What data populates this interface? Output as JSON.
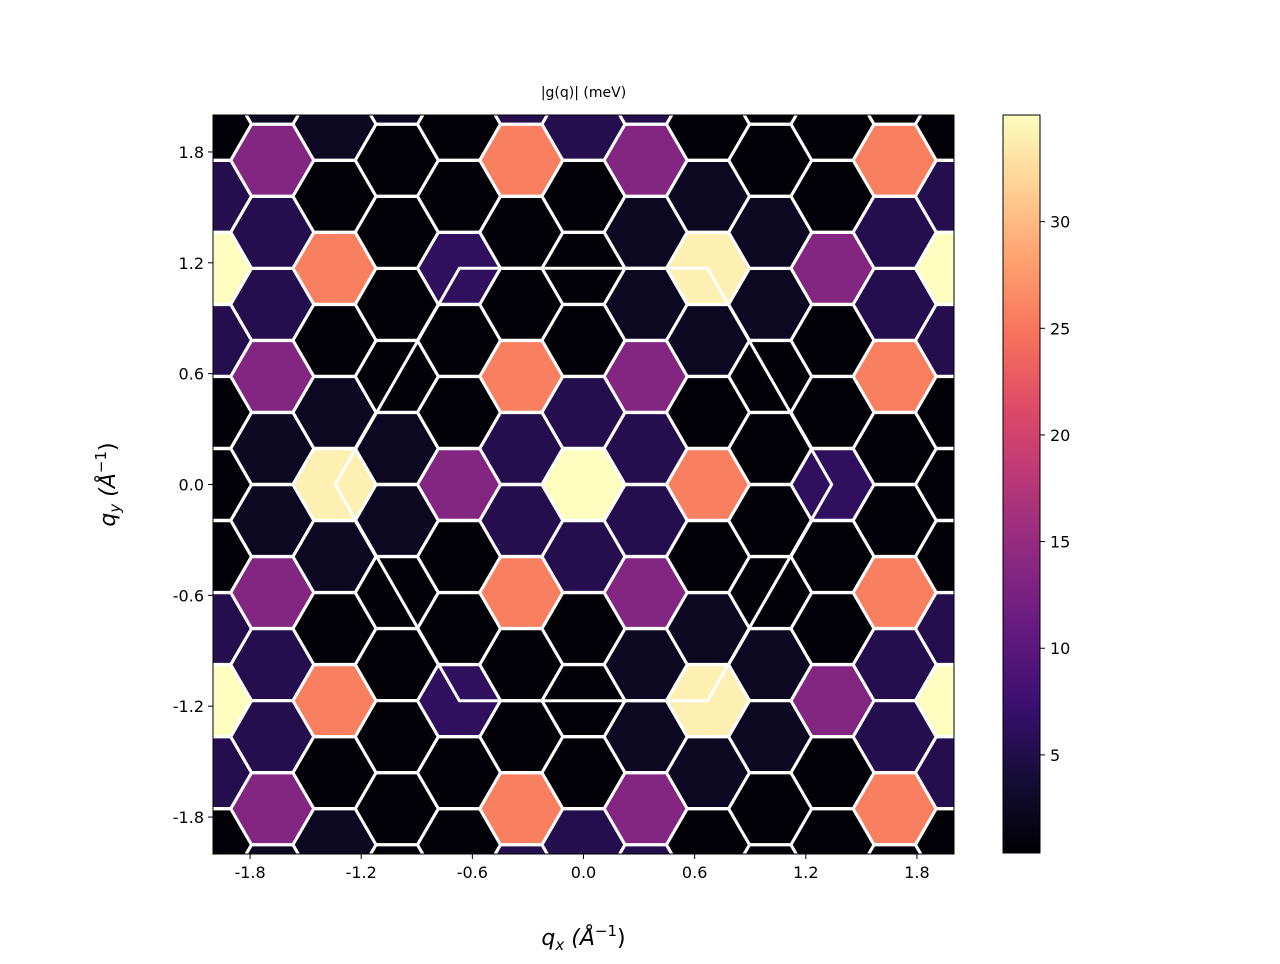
{
  "chart_data": {
    "type": "heatmap",
    "subtype": "hexbin",
    "title": "|g(q)| (meV)",
    "xlabel": "q_x (Å^-1)",
    "ylabel": "q_y (Å^-1)",
    "xlabel_parts": {
      "base": "q",
      "sub": "x",
      "unit": "(Å",
      "sup": "−1",
      "close": ")"
    },
    "ylabel_parts": {
      "base": "q",
      "sub": "y",
      "unit": "(Å",
      "sup": "−1",
      "close": ")"
    },
    "xlim": [
      -2.0,
      2.0
    ],
    "ylim": [
      -2.0,
      2.0
    ],
    "xticks": [
      "-1.8",
      "-1.2",
      "-0.6",
      "0.0",
      "0.6",
      "1.2",
      "1.8"
    ],
    "yticks": [
      "-1.8",
      "-1.2",
      "-0.6",
      "0.0",
      "0.6",
      "1.2",
      "1.8"
    ],
    "colormap": "magma",
    "hex_edge_color": "#ffffff",
    "colorbar": {
      "range": [
        0.4,
        35.0
      ],
      "ticks": [
        "5",
        "10",
        "15",
        "20",
        "25",
        "30"
      ],
      "placement": "right"
    },
    "brillouin_zone": {
      "color": "#ffffff",
      "vertices": [
        [
          -0.67,
          1.17
        ],
        [
          0.67,
          1.17
        ],
        [
          1.34,
          0.0
        ],
        [
          0.67,
          -1.17
        ],
        [
          -0.67,
          -1.17
        ],
        [
          -1.34,
          0.0
        ]
      ]
    },
    "hex_size": 0.224,
    "even_col_y": [
      1.95,
      1.56,
      1.17,
      0.78,
      0.39,
      0.0,
      -0.39,
      -0.78,
      -1.17,
      -1.56,
      -1.95
    ],
    "odd_col_y": [
      2.145,
      1.755,
      1.365,
      0.975,
      0.585,
      0.195,
      -0.195,
      -0.585,
      -0.975,
      -1.365,
      -1.755,
      -2.145
    ],
    "columns": [
      {
        "x": -2.016,
        "parity": "even",
        "values": [
          0.7,
          5.3,
          35,
          5.3,
          0.7,
          0.7,
          0.7,
          5.3,
          35,
          5.3,
          0.7
        ]
      },
      {
        "x": -1.68,
        "parity": "odd",
        "values": [
          2.5,
          13.5,
          5.3,
          5.3,
          13.5,
          2.5,
          2.5,
          13.5,
          5.3,
          5.3,
          13.5,
          2.5
        ]
      },
      {
        "x": -1.344,
        "parity": "even",
        "values": [
          2.5,
          0.7,
          25.7,
          0.7,
          2.5,
          34,
          2.5,
          0.7,
          25.7,
          0.7,
          2.5
        ]
      },
      {
        "x": -1.008,
        "parity": "odd",
        "values": [
          2.5,
          0.7,
          0.7,
          0.7,
          0.7,
          2.5,
          2.5,
          0.7,
          0.7,
          0.7,
          0.7,
          0.7
        ]
      },
      {
        "x": -0.672,
        "parity": "even",
        "values": [
          0.7,
          0.7,
          6.3,
          0.7,
          0.7,
          13.5,
          0.7,
          0.7,
          6.3,
          0.7,
          0.7
        ]
      },
      {
        "x": -0.336,
        "parity": "odd",
        "values": [
          5.3,
          25.7,
          0.7,
          0.7,
          25.7,
          5.3,
          5.3,
          25.7,
          0.7,
          0.7,
          25.7,
          5.3
        ]
      },
      {
        "x": 0.0,
        "parity": "even",
        "values": [
          5.3,
          0.7,
          0.7,
          0.7,
          5.3,
          35,
          5.3,
          0.7,
          0.7,
          0.7,
          5.3
        ]
      },
      {
        "x": 0.336,
        "parity": "odd",
        "values": [
          5.3,
          13.5,
          2.5,
          2.5,
          13.5,
          5.3,
          5.3,
          13.5,
          2.5,
          2.5,
          13.5,
          5.3
        ]
      },
      {
        "x": 0.672,
        "parity": "even",
        "values": [
          0.7,
          2.5,
          34,
          2.5,
          0.7,
          25.7,
          0.7,
          2.5,
          34,
          2.5,
          0.7
        ]
      },
      {
        "x": 1.008,
        "parity": "odd",
        "values": [
          0.7,
          0.7,
          2.5,
          2.5,
          0.7,
          0.7,
          0.7,
          0.7,
          2.5,
          2.5,
          0.7,
          0.7
        ]
      },
      {
        "x": 1.344,
        "parity": "even",
        "values": [
          0.7,
          0.7,
          13.5,
          0.7,
          0.7,
          6.3,
          0.7,
          0.7,
          13.5,
          0.7,
          0.7
        ]
      },
      {
        "x": 1.68,
        "parity": "odd",
        "values": [
          0.7,
          25.7,
          5.3,
          5.3,
          25.7,
          0.7,
          0.7,
          25.7,
          5.3,
          5.3,
          25.7,
          0.7
        ]
      },
      {
        "x": 2.016,
        "parity": "even",
        "values": [
          0.7,
          5.3,
          35,
          5.3,
          0.7,
          0.7,
          0.7,
          5.3,
          35,
          5.3,
          0.7
        ]
      }
    ]
  }
}
